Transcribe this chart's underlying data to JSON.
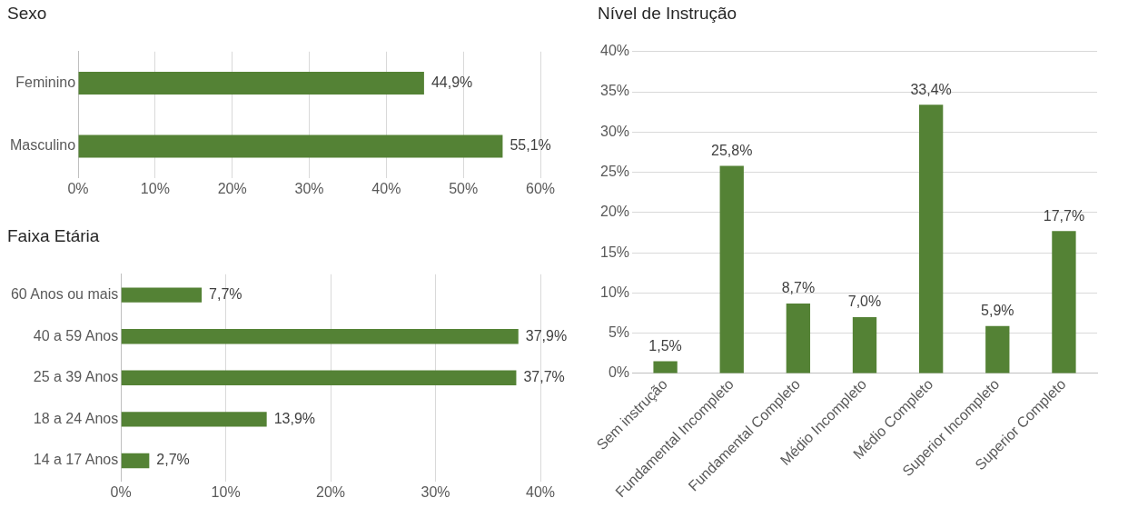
{
  "chart_data": [
    {
      "type": "bar",
      "title": "Sexo",
      "orientation": "horizontal",
      "categories": [
        "Feminino",
        "Masculino"
      ],
      "values": [
        44.9,
        55.1
      ],
      "color": "#548235",
      "value_labels": [
        "44,9%",
        "55,1%"
      ],
      "xlim": [
        0,
        60
      ],
      "xticks": [
        {
          "value": 0,
          "label": "0%"
        },
        {
          "value": 10,
          "label": "10%"
        },
        {
          "value": 20,
          "label": "20%"
        },
        {
          "value": 30,
          "label": "30%"
        },
        {
          "value": 40,
          "label": "40%"
        },
        {
          "value": 50,
          "label": "50%"
        },
        {
          "value": 60,
          "label": "60%"
        }
      ],
      "grid": "x",
      "legend": false
    },
    {
      "type": "bar",
      "title": "Faixa Etária",
      "orientation": "horizontal",
      "categories": [
        "60 Anos ou mais",
        "40 a 59 Anos",
        "25 a 39 Anos",
        "18 a 24 Anos",
        "14 a 17 Anos"
      ],
      "values": [
        7.7,
        37.9,
        37.7,
        13.9,
        2.7
      ],
      "color": "#548235",
      "value_labels": [
        "7,7%",
        "37,9%",
        "37,7%",
        "13,9%",
        "2,7%"
      ],
      "xlim": [
        0,
        40
      ],
      "xticks": [
        {
          "value": 0,
          "label": "0%"
        },
        {
          "value": 10,
          "label": "10%"
        },
        {
          "value": 20,
          "label": "20%"
        },
        {
          "value": 30,
          "label": "30%"
        },
        {
          "value": 40,
          "label": "40%"
        }
      ],
      "grid": "x",
      "legend": false
    },
    {
      "type": "bar",
      "title": "Nível de Instrução",
      "categories": [
        "Sem instrução",
        "Fundamental Incompleto",
        "Fundamental Completo",
        "Médio Incompleto",
        "Médio Completo",
        "Superior Incompleto",
        "Superior Completo"
      ],
      "values": [
        1.5,
        25.8,
        8.7,
        7.0,
        33.4,
        5.9,
        17.7
      ],
      "color": "#548235",
      "value_labels": [
        "1,5%",
        "25,8%",
        "8,7%",
        "7,0%",
        "33,4%",
        "5,9%",
        "17,7%"
      ],
      "ylim": [
        0,
        40
      ],
      "yticks": [
        {
          "value": 0,
          "label": "0%"
        },
        {
          "value": 5,
          "label": "5%"
        },
        {
          "value": 10,
          "label": "10%"
        },
        {
          "value": 15,
          "label": "15%"
        },
        {
          "value": 20,
          "label": "20%"
        },
        {
          "value": 25,
          "label": "25%"
        },
        {
          "value": 30,
          "label": "30%"
        },
        {
          "value": 35,
          "label": "35%"
        },
        {
          "value": 40,
          "label": "40%"
        }
      ],
      "grid": "y",
      "legend": false
    }
  ]
}
